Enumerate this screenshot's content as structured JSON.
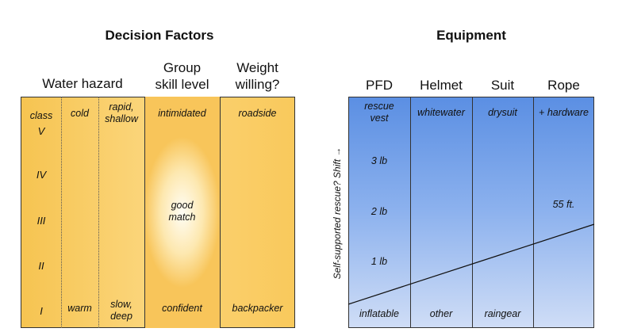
{
  "decision_factors": {
    "title": "Decision Factors",
    "headers": {
      "water_hazard": "Water hazard",
      "group_skill": [
        "Group",
        "skill level"
      ],
      "weight": [
        "Weight",
        "willing?"
      ]
    },
    "class_label": [
      "class",
      "V"
    ],
    "classes": [
      "IV",
      "III",
      "II",
      "I"
    ],
    "temperature": {
      "top": "cold",
      "bottom": "warm"
    },
    "flow": {
      "top": [
        "rapid,",
        "shallow"
      ],
      "bottom": [
        "slow,",
        "deep"
      ]
    },
    "skill": {
      "top": "intimidated",
      "middle": [
        "good",
        "match"
      ],
      "bottom": "confident"
    },
    "weight_values": {
      "top": "roadside",
      "bottom": "backpacker"
    }
  },
  "equipment": {
    "title": "Equipment",
    "headers": [
      "PFD",
      "Helmet",
      "Suit",
      "Rope"
    ],
    "pfd": {
      "top": [
        "rescue",
        "vest"
      ],
      "weights": [
        "3 lb",
        "2 lb",
        "1 lb"
      ],
      "bottom": "inflatable"
    },
    "helmet": {
      "top": "whitewater",
      "bottom": "other"
    },
    "suit": {
      "top": "drysuit",
      "bottom": "raingear"
    },
    "rope": {
      "top": "+ hardware",
      "mid": "55 ft."
    },
    "side_label": "Self-supported rescue? Shift →"
  }
}
